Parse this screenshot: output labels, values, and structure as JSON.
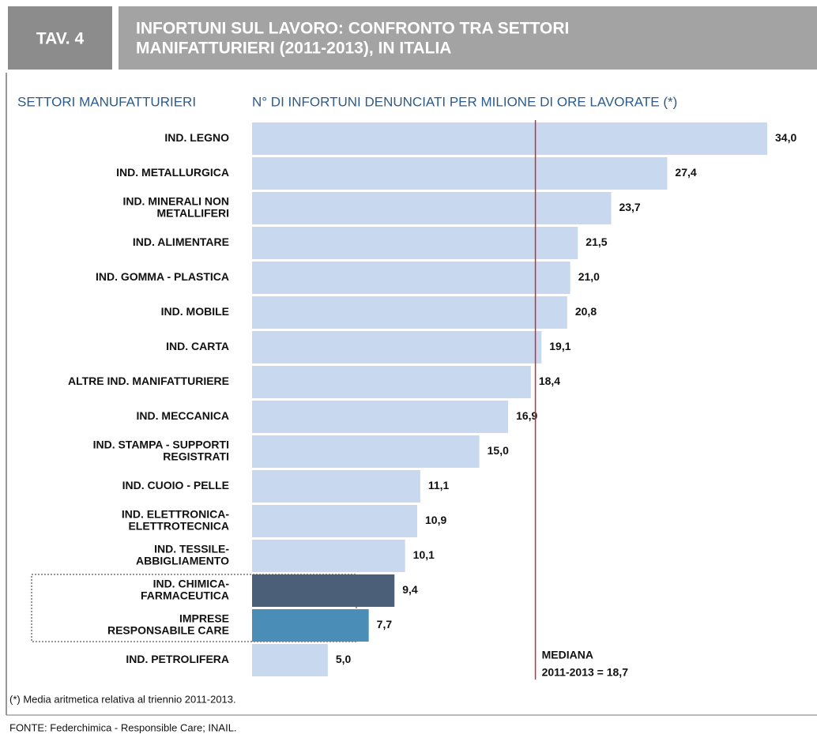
{
  "chart_data": {
    "type": "barh",
    "tag": "TAV. 4",
    "title": [
      "INFORTUNI SUL LAVORO: CONFRONTO TRA SETTORI",
      "MANIFATTURIERI (2011-2013), IN ITALIA"
    ],
    "category_axis_label": "SETTORI MANUFATTURIERI",
    "value_axis_label": "N° DI INFORTUNI DENUNCIATI PER MILIONE DI ORE LAVORATE (*)",
    "categories": [
      [
        "IND. LEGNO"
      ],
      [
        "IND. METALLURGICA"
      ],
      [
        "IND. MINERALI NON",
        "METALLIFERI"
      ],
      [
        "IND. ALIMENTARE"
      ],
      [
        "IND. GOMMA - PLASTICA"
      ],
      [
        "IND. MOBILE"
      ],
      [
        "IND. CARTA"
      ],
      [
        "ALTRE IND. MANIFATTURIERE"
      ],
      [
        "IND. MECCANICA"
      ],
      [
        "IND. STAMPA - SUPPORTI",
        "REGISTRATI"
      ],
      [
        "IND. CUOIO - PELLE"
      ],
      [
        "IND. ELETTRONICA-",
        "ELETTROTECNICA"
      ],
      [
        "IND. TESSILE-",
        "ABBIGLIAMENTO"
      ],
      [
        "IND. CHIMICA-",
        "FARMACEUTICA"
      ],
      [
        "IMPRESE",
        "RESPONSABILE CARE"
      ],
      [
        "IND. PETROLIFERA"
      ]
    ],
    "values": [
      34.0,
      27.4,
      23.7,
      21.5,
      21.0,
      20.8,
      19.1,
      18.4,
      16.9,
      15.0,
      11.1,
      10.9,
      10.1,
      9.4,
      7.7,
      5.0
    ],
    "value_labels": [
      "34,0",
      "27,4",
      "23,7",
      "21,5",
      "21,0",
      "20,8",
      "19,1",
      "18,4",
      "16,9",
      "15,0",
      "11,1",
      "10,9",
      "10,1",
      "9,4",
      "7,7",
      "5,0"
    ],
    "colors": [
      "#c8d8ee",
      "#c8d8ee",
      "#c8d8ee",
      "#c8d8ee",
      "#c8d8ee",
      "#c8d8ee",
      "#c8d8ee",
      "#c8d8ee",
      "#c8d8ee",
      "#c8d8ee",
      "#c8d8ee",
      "#c8d8ee",
      "#c8d8ee",
      "#4b6078",
      "#4a8db6",
      "#c8d8ee"
    ],
    "xlim": [
      0,
      34
    ],
    "median": 18.7,
    "median_color": "#c0303a",
    "median_label": [
      "MEDIANA",
      "2011-2013 = 18,7"
    ],
    "footnote": "(*) Media aritmetica relativa al triennio 2011-2013.",
    "source": "FONTE: Federchimica - Responsible Care; INAIL."
  }
}
